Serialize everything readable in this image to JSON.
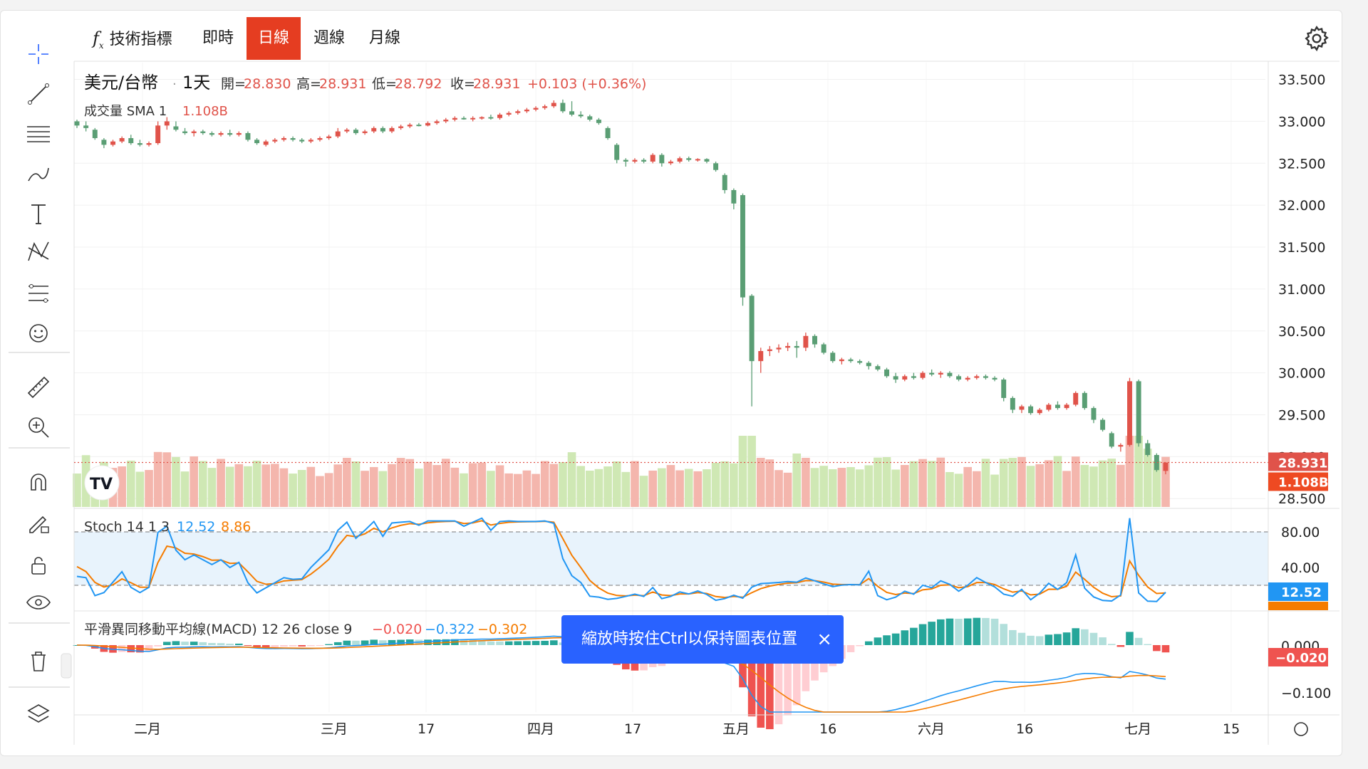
{
  "toolbar": {
    "indicators_icon": "function-icon",
    "indicators_label": "技術指標",
    "intraday_label": "即時",
    "daily_label": "日線",
    "weekly_label": "週線",
    "monthly_label": "月線",
    "active": "日線",
    "settings_icon": "gear-icon"
  },
  "left_tools": [
    "crosshair-icon",
    "trend-line-icon",
    "horizontal-lines-icon",
    "brush-icon",
    "text-icon",
    "pattern-icon",
    "fib-icon",
    "emoji-icon",
    "ruler-icon",
    "zoom-in-icon",
    "magnet-icon",
    "lock-pencil-icon",
    "lock-icon",
    "eye-icon",
    "trash-icon",
    "layers-icon"
  ],
  "legend": {
    "symbol": "美元/台幣",
    "interval": "1天",
    "open_label": "開=28.830",
    "high_label": "高=28.931",
    "low_label": "低=28.792",
    "close_label": "收=28.931",
    "change": "+0.103 (+0.36%)",
    "volume_label": "成交量 SMA 1",
    "volume_value": "1.108B"
  },
  "stoch_legend": {
    "label": "Stoch 14 1 3",
    "k": "12.52",
    "d": "8.86"
  },
  "macd_legend": {
    "label": "平滑異同移動平均線(MACD) 12 26 close 9",
    "hist": "−0.020",
    "macd": "−0.322",
    "signal": "−0.302"
  },
  "price_axis_ticks": [
    "33.500",
    "33.000",
    "32.500",
    "32.000",
    "31.500",
    "31.000",
    "30.500",
    "30.000",
    "29.500",
    "29.000",
    "28.500"
  ],
  "price_tags": {
    "last": "28.931",
    "volume": "1.108B"
  },
  "stoch_axis_ticks": [
    "80.00",
    "40.00"
  ],
  "stoch_tags": {
    "k": "12.52",
    "d": "8.86"
  },
  "macd_axis_ticks": [
    "0.000",
    "−0.100"
  ],
  "macd_tag": "−0.020",
  "time_axis": [
    "二月",
    "三月",
    "17",
    "四月",
    "17",
    "五月",
    "16",
    "六月",
    "16",
    "七月",
    "15"
  ],
  "toast": {
    "text": "縮放時按住Ctrl以保持圖表位置",
    "close": "×"
  },
  "colors": {
    "up": "#e0534a",
    "down": "#5a9e74",
    "vol_up": "#f4b6ad",
    "vol_down": "#cfe8b4",
    "stoch_k": "#2196f3",
    "stoch_d": "#f57c00",
    "accent": "#e53d21",
    "toast": "#2962ff"
  },
  "chart_data": {
    "type": "candlestick",
    "title": "美元/台幣 1天",
    "ylim": [
      28.4,
      33.7
    ],
    "candles": [
      {
        "o": 33.0,
        "h": 33.02,
        "l": 32.92,
        "c": 32.95
      },
      {
        "o": 32.95,
        "h": 33.0,
        "l": 32.88,
        "c": 32.92
      },
      {
        "o": 32.9,
        "h": 32.92,
        "l": 32.78,
        "c": 32.8
      },
      {
        "o": 32.78,
        "h": 32.8,
        "l": 32.68,
        "c": 32.72
      },
      {
        "o": 32.72,
        "h": 32.78,
        "l": 32.7,
        "c": 32.76
      },
      {
        "o": 32.76,
        "h": 32.82,
        "l": 32.74,
        "c": 32.8
      },
      {
        "o": 32.8,
        "h": 32.84,
        "l": 32.72,
        "c": 32.74
      },
      {
        "o": 32.74,
        "h": 32.78,
        "l": 32.7,
        "c": 32.72
      },
      {
        "o": 32.72,
        "h": 32.76,
        "l": 32.7,
        "c": 32.74
      },
      {
        "o": 32.74,
        "h": 33.0,
        "l": 32.72,
        "c": 32.95
      },
      {
        "o": 32.95,
        "h": 33.05,
        "l": 32.9,
        "c": 33.0
      },
      {
        "o": 32.94,
        "h": 33.0,
        "l": 32.88,
        "c": 32.9
      },
      {
        "o": 32.88,
        "h": 32.92,
        "l": 32.84,
        "c": 32.86
      },
      {
        "o": 32.86,
        "h": 32.9,
        "l": 32.82,
        "c": 32.88
      },
      {
        "o": 32.88,
        "h": 32.9,
        "l": 32.84,
        "c": 32.86
      },
      {
        "o": 32.86,
        "h": 32.88,
        "l": 32.82,
        "c": 32.84
      },
      {
        "o": 32.84,
        "h": 32.88,
        "l": 32.82,
        "c": 32.86
      },
      {
        "o": 32.86,
        "h": 32.9,
        "l": 32.82,
        "c": 32.84
      },
      {
        "o": 32.84,
        "h": 32.88,
        "l": 32.82,
        "c": 32.86
      },
      {
        "o": 32.86,
        "h": 32.88,
        "l": 32.76,
        "c": 32.78
      },
      {
        "o": 32.78,
        "h": 32.8,
        "l": 32.72,
        "c": 32.74
      },
      {
        "o": 32.72,
        "h": 32.78,
        "l": 32.7,
        "c": 32.76
      },
      {
        "o": 32.76,
        "h": 32.8,
        "l": 32.74,
        "c": 32.78
      },
      {
        "o": 32.78,
        "h": 32.82,
        "l": 32.76,
        "c": 32.8
      },
      {
        "o": 32.8,
        "h": 32.82,
        "l": 32.76,
        "c": 32.78
      },
      {
        "o": 32.78,
        "h": 32.8,
        "l": 32.74,
        "c": 32.76
      },
      {
        "o": 32.76,
        "h": 32.8,
        "l": 32.74,
        "c": 32.78
      },
      {
        "o": 32.78,
        "h": 32.82,
        "l": 32.76,
        "c": 32.8
      },
      {
        "o": 32.8,
        "h": 32.84,
        "l": 32.78,
        "c": 32.82
      },
      {
        "o": 32.82,
        "h": 32.92,
        "l": 32.8,
        "c": 32.88
      },
      {
        "o": 32.88,
        "h": 32.92,
        "l": 32.86,
        "c": 32.9
      },
      {
        "o": 32.9,
        "h": 32.92,
        "l": 32.84,
        "c": 32.86
      },
      {
        "o": 32.86,
        "h": 32.9,
        "l": 32.84,
        "c": 32.88
      },
      {
        "o": 32.88,
        "h": 32.94,
        "l": 32.86,
        "c": 32.92
      },
      {
        "o": 32.92,
        "h": 32.94,
        "l": 32.86,
        "c": 32.88
      },
      {
        "o": 32.88,
        "h": 32.94,
        "l": 32.86,
        "c": 32.92
      },
      {
        "o": 32.92,
        "h": 32.96,
        "l": 32.9,
        "c": 32.94
      },
      {
        "o": 32.94,
        "h": 32.98,
        "l": 32.92,
        "c": 32.96
      },
      {
        "o": 32.96,
        "h": 32.98,
        "l": 32.94,
        "c": 32.95
      },
      {
        "o": 32.95,
        "h": 33.0,
        "l": 32.94,
        "c": 32.98
      },
      {
        "o": 32.98,
        "h": 33.02,
        "l": 32.96,
        "c": 33.0
      },
      {
        "o": 33.0,
        "h": 33.04,
        "l": 32.98,
        "c": 33.02
      },
      {
        "o": 33.02,
        "h": 33.06,
        "l": 33.0,
        "c": 33.04
      },
      {
        "o": 33.04,
        "h": 33.06,
        "l": 33.02,
        "c": 33.03
      },
      {
        "o": 33.03,
        "h": 33.06,
        "l": 33.0,
        "c": 33.04
      },
      {
        "o": 33.04,
        "h": 33.06,
        "l": 33.02,
        "c": 33.05
      },
      {
        "o": 33.05,
        "h": 33.08,
        "l": 33.02,
        "c": 33.04
      },
      {
        "o": 33.04,
        "h": 33.1,
        "l": 33.02,
        "c": 33.08
      },
      {
        "o": 33.08,
        "h": 33.12,
        "l": 33.06,
        "c": 33.1
      },
      {
        "o": 33.1,
        "h": 33.14,
        "l": 33.08,
        "c": 33.12
      },
      {
        "o": 33.12,
        "h": 33.16,
        "l": 33.1,
        "c": 33.14
      },
      {
        "o": 33.14,
        "h": 33.18,
        "l": 33.12,
        "c": 33.16
      },
      {
        "o": 33.16,
        "h": 33.2,
        "l": 33.14,
        "c": 33.18
      },
      {
        "o": 33.18,
        "h": 33.25,
        "l": 33.16,
        "c": 33.22
      },
      {
        "o": 33.22,
        "h": 33.26,
        "l": 33.1,
        "c": 33.12
      },
      {
        "o": 33.12,
        "h": 33.24,
        "l": 33.06,
        "c": 33.08
      },
      {
        "o": 33.08,
        "h": 33.12,
        "l": 33.04,
        "c": 33.06
      },
      {
        "o": 33.06,
        "h": 33.08,
        "l": 33.0,
        "c": 33.02
      },
      {
        "o": 33.02,
        "h": 33.04,
        "l": 32.96,
        "c": 32.98
      },
      {
        "o": 32.92,
        "h": 32.94,
        "l": 32.78,
        "c": 32.8
      },
      {
        "o": 32.72,
        "h": 32.74,
        "l": 32.5,
        "c": 32.54
      },
      {
        "o": 32.54,
        "h": 32.56,
        "l": 32.46,
        "c": 32.52
      },
      {
        "o": 32.52,
        "h": 32.56,
        "l": 32.5,
        "c": 32.54
      },
      {
        "o": 32.54,
        "h": 32.56,
        "l": 32.5,
        "c": 32.52
      },
      {
        "o": 32.52,
        "h": 32.62,
        "l": 32.5,
        "c": 32.6
      },
      {
        "o": 32.6,
        "h": 32.62,
        "l": 32.46,
        "c": 32.5
      },
      {
        "o": 32.5,
        "h": 32.54,
        "l": 32.48,
        "c": 32.52
      },
      {
        "o": 32.52,
        "h": 32.58,
        "l": 32.5,
        "c": 32.56
      },
      {
        "o": 32.56,
        "h": 32.58,
        "l": 32.52,
        "c": 32.54
      },
      {
        "o": 32.54,
        "h": 32.56,
        "l": 32.52,
        "c": 32.55
      },
      {
        "o": 32.55,
        "h": 32.56,
        "l": 32.5,
        "c": 32.52
      },
      {
        "o": 32.5,
        "h": 32.52,
        "l": 32.4,
        "c": 32.42
      },
      {
        "o": 32.36,
        "h": 32.38,
        "l": 32.14,
        "c": 32.18
      },
      {
        "o": 32.18,
        "h": 32.2,
        "l": 31.95,
        "c": 32.02
      },
      {
        "o": 32.12,
        "h": 32.14,
        "l": 30.8,
        "c": 30.9
      },
      {
        "o": 30.92,
        "h": 30.94,
        "l": 29.6,
        "c": 30.14
      },
      {
        "o": 30.14,
        "h": 30.3,
        "l": 30.0,
        "c": 30.26
      },
      {
        "o": 30.26,
        "h": 30.32,
        "l": 30.2,
        "c": 30.28
      },
      {
        "o": 30.28,
        "h": 30.34,
        "l": 30.24,
        "c": 30.3
      },
      {
        "o": 30.3,
        "h": 30.36,
        "l": 30.26,
        "c": 30.32
      },
      {
        "o": 30.32,
        "h": 30.38,
        "l": 30.18,
        "c": 30.3
      },
      {
        "o": 30.3,
        "h": 30.48,
        "l": 30.26,
        "c": 30.44
      },
      {
        "o": 30.44,
        "h": 30.46,
        "l": 30.3,
        "c": 30.34
      },
      {
        "o": 30.34,
        "h": 30.36,
        "l": 30.22,
        "c": 30.24
      },
      {
        "o": 30.24,
        "h": 30.26,
        "l": 30.12,
        "c": 30.14
      },
      {
        "o": 30.14,
        "h": 30.18,
        "l": 30.1,
        "c": 30.16
      },
      {
        "o": 30.16,
        "h": 30.18,
        "l": 30.12,
        "c": 30.14
      },
      {
        "o": 30.14,
        "h": 30.16,
        "l": 30.1,
        "c": 30.12
      },
      {
        "o": 30.12,
        "h": 30.14,
        "l": 30.04,
        "c": 30.08
      },
      {
        "o": 30.08,
        "h": 30.1,
        "l": 30.02,
        "c": 30.04
      },
      {
        "o": 30.04,
        "h": 30.06,
        "l": 29.94,
        "c": 29.96
      },
      {
        "o": 29.96,
        "h": 30.0,
        "l": 29.88,
        "c": 29.92
      },
      {
        "o": 29.92,
        "h": 29.98,
        "l": 29.9,
        "c": 29.96
      },
      {
        "o": 29.96,
        "h": 30.0,
        "l": 29.92,
        "c": 29.94
      },
      {
        "o": 29.94,
        "h": 30.02,
        "l": 29.92,
        "c": 30.0
      },
      {
        "o": 30.0,
        "h": 30.04,
        "l": 29.96,
        "c": 29.98
      },
      {
        "o": 29.98,
        "h": 30.02,
        "l": 29.94,
        "c": 30.0
      },
      {
        "o": 30.0,
        "h": 30.02,
        "l": 29.94,
        "c": 29.96
      },
      {
        "o": 29.96,
        "h": 29.98,
        "l": 29.9,
        "c": 29.92
      },
      {
        "o": 29.92,
        "h": 29.96,
        "l": 29.9,
        "c": 29.94
      },
      {
        "o": 29.94,
        "h": 29.98,
        "l": 29.92,
        "c": 29.96
      },
      {
        "o": 29.96,
        "h": 29.98,
        "l": 29.92,
        "c": 29.94
      },
      {
        "o": 29.94,
        "h": 29.96,
        "l": 29.9,
        "c": 29.92
      },
      {
        "o": 29.92,
        "h": 29.94,
        "l": 29.66,
        "c": 29.7
      },
      {
        "o": 29.7,
        "h": 29.72,
        "l": 29.52,
        "c": 29.56
      },
      {
        "o": 29.56,
        "h": 29.62,
        "l": 29.52,
        "c": 29.6
      },
      {
        "o": 29.6,
        "h": 29.62,
        "l": 29.5,
        "c": 29.52
      },
      {
        "o": 29.52,
        "h": 29.58,
        "l": 29.5,
        "c": 29.56
      },
      {
        "o": 29.56,
        "h": 29.64,
        "l": 29.54,
        "c": 29.62
      },
      {
        "o": 29.62,
        "h": 29.66,
        "l": 29.56,
        "c": 29.58
      },
      {
        "o": 29.58,
        "h": 29.64,
        "l": 29.56,
        "c": 29.62
      },
      {
        "o": 29.62,
        "h": 29.78,
        "l": 29.6,
        "c": 29.76
      },
      {
        "o": 29.76,
        "h": 29.78,
        "l": 29.56,
        "c": 29.58
      },
      {
        "o": 29.58,
        "h": 29.6,
        "l": 29.4,
        "c": 29.44
      },
      {
        "o": 29.44,
        "h": 29.46,
        "l": 29.3,
        "c": 29.32
      },
      {
        "o": 29.28,
        "h": 29.3,
        "l": 29.1,
        "c": 29.12
      },
      {
        "o": 29.12,
        "h": 29.16,
        "l": 29.06,
        "c": 29.14
      },
      {
        "o": 29.14,
        "h": 29.94,
        "l": 29.12,
        "c": 29.9
      },
      {
        "o": 29.9,
        "h": 29.92,
        "l": 29.12,
        "c": 29.16
      },
      {
        "o": 29.16,
        "h": 29.2,
        "l": 29.0,
        "c": 29.02
      },
      {
        "o": 29.02,
        "h": 29.04,
        "l": 28.82,
        "c": 28.84
      },
      {
        "o": 28.83,
        "h": 28.93,
        "l": 28.79,
        "c": 28.93
      }
    ]
  }
}
